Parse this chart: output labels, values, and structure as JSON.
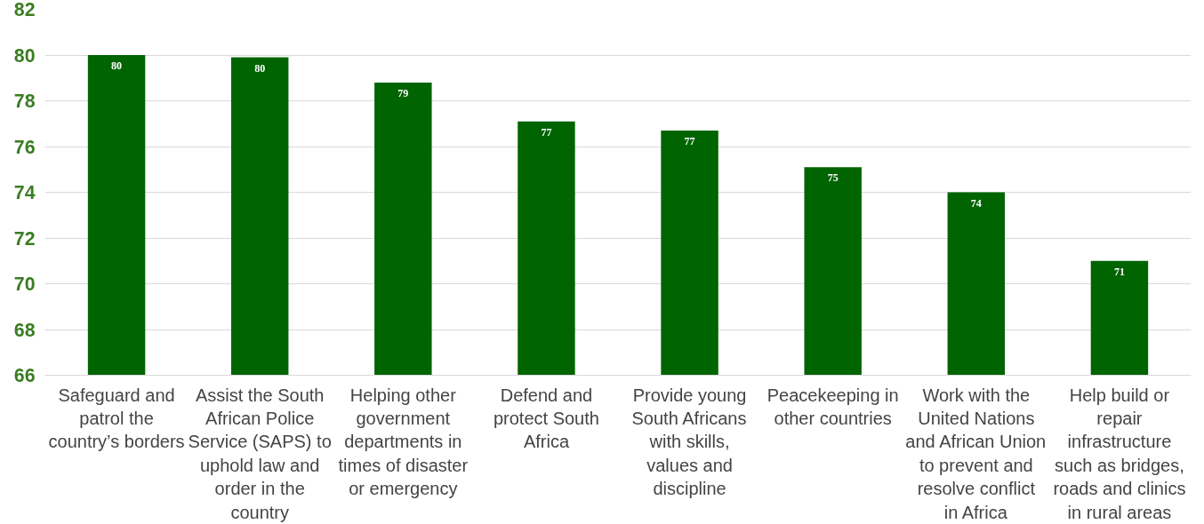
{
  "chart_data": {
    "type": "bar",
    "categories": [
      "Safeguard and patrol the country’s borders",
      "Assist the South African Police Service (SAPS) to uphold law and order in the country",
      "Helping other government departments in times of disaster or emergency",
      "Defend and protect South Africa",
      "Provide young South Africans with skills, values and discipline",
      "Peacekeeping in other countries",
      "Work with the United Nations and African Union to prevent and resolve conflict in Africa",
      "Help build or repair infrastructure such as bridges, roads and clinics in rural areas"
    ],
    "values": [
      80.0,
      79.9,
      78.8,
      77.1,
      76.7,
      75.1,
      74.0,
      71.0
    ],
    "value_labels": [
      "80",
      "80",
      "79",
      "77",
      "77",
      "75",
      "74",
      "71"
    ],
    "color": "#006400",
    "ylim": [
      66,
      82
    ],
    "yticks": [
      66,
      68,
      70,
      72,
      74,
      76,
      78,
      80,
      82
    ],
    "grid": "y"
  }
}
